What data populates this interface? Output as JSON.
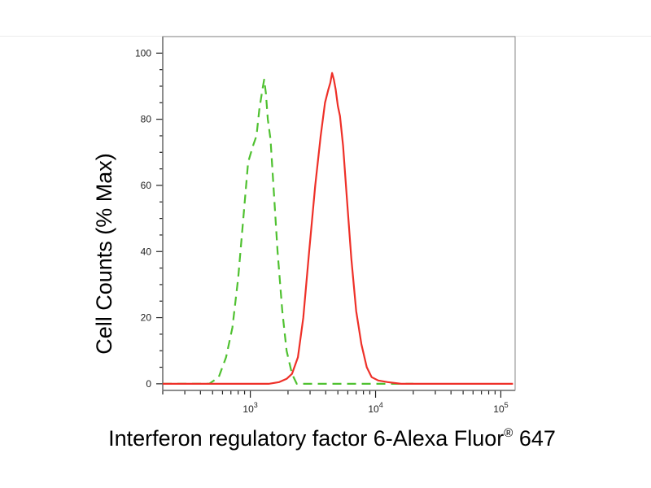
{
  "chart_data": {
    "type": "line",
    "xlabel": "Interferon regulatory factor 6-Alexa Fluor",
    "xlabel_sup": "®",
    "xlabel_suffix": " 647",
    "ylabel": "Cell Counts (% Max)",
    "x_scale": "log",
    "xlim": [
      200,
      130000
    ],
    "ylim": [
      -2,
      105
    ],
    "y_ticks": [
      "0",
      "20",
      "40",
      "60",
      "80",
      "100"
    ],
    "x_ticks": [
      {
        "base": "10",
        "exp": "3",
        "value": 1000
      },
      {
        "base": "10",
        "exp": "4",
        "value": 10000
      },
      {
        "base": "10",
        "exp": "5",
        "value": 100000
      }
    ],
    "grid": false,
    "series": [
      {
        "color": "#4fc130",
        "style": "dashed",
        "points": [
          [
            200,
            0
          ],
          [
            470,
            0
          ],
          [
            560,
            2
          ],
          [
            640,
            8
          ],
          [
            720,
            17
          ],
          [
            800,
            32
          ],
          [
            880,
            50
          ],
          [
            960,
            67
          ],
          [
            1050,
            72
          ],
          [
            1120,
            75
          ],
          [
            1180,
            83
          ],
          [
            1250,
            89
          ],
          [
            1290,
            92
          ],
          [
            1330,
            88
          ],
          [
            1380,
            80
          ],
          [
            1450,
            74
          ],
          [
            1530,
            60
          ],
          [
            1650,
            40
          ],
          [
            1800,
            22
          ],
          [
            1950,
            10
          ],
          [
            2150,
            3
          ],
          [
            2350,
            0
          ],
          [
            2600,
            0
          ],
          [
            5000,
            0
          ],
          [
            10000,
            0
          ],
          [
            20000,
            0
          ]
        ]
      },
      {
        "color": "#ee3028",
        "style": "solid",
        "points": [
          [
            200,
            0
          ],
          [
            1000,
            0
          ],
          [
            1400,
            0
          ],
          [
            1700,
            0.5
          ],
          [
            1950,
            1.5
          ],
          [
            2150,
            3
          ],
          [
            2400,
            8
          ],
          [
            2650,
            20
          ],
          [
            2950,
            40
          ],
          [
            3300,
            60
          ],
          [
            3650,
            75
          ],
          [
            3950,
            85
          ],
          [
            4200,
            89
          ],
          [
            4350,
            91
          ],
          [
            4500,
            94
          ],
          [
            4650,
            92
          ],
          [
            4800,
            89
          ],
          [
            5000,
            84
          ],
          [
            5200,
            81
          ],
          [
            5500,
            72
          ],
          [
            5900,
            56
          ],
          [
            6400,
            38
          ],
          [
            7000,
            22
          ],
          [
            7700,
            12
          ],
          [
            8500,
            5
          ],
          [
            9300,
            2
          ],
          [
            10500,
            1
          ],
          [
            12500,
            0.5
          ],
          [
            16000,
            0
          ],
          [
            30000,
            0
          ],
          [
            80000,
            0
          ],
          [
            125000,
            0
          ]
        ]
      }
    ]
  }
}
